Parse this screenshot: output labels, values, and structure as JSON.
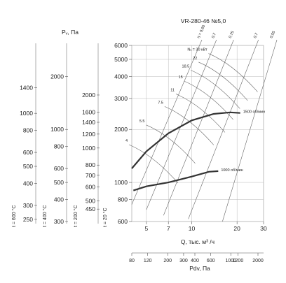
{
  "chart_data": {
    "type": "line",
    "title": "VR-280-46 №5,0",
    "xlabel": "Q, тыс. м³ /ч",
    "ylabel": "Pᵥ, Па",
    "x_scale": "log",
    "y_scale": "log",
    "xlim": [
      4,
      30
    ],
    "ylim": [
      600,
      6000
    ],
    "x_ticks": [
      5,
      7,
      10,
      20,
      30
    ],
    "y_ticks": [
      600,
      800,
      1000,
      2000,
      3000,
      4000,
      5000,
      6000
    ],
    "temperature_scales": [
      {
        "label": "t = 20 °C",
        "ticks": [
          "600",
          "800",
          "1000",
          "2000",
          "3000",
          "4000",
          "5000",
          "6000"
        ]
      },
      {
        "label": "t = 200 °C",
        "ticks": [
          "450",
          "500",
          "600",
          "700",
          "800",
          "1000",
          "1200",
          "1400",
          "1600",
          "2000"
        ]
      },
      {
        "label": "t = 400 °C",
        "ticks": [
          "300",
          "400",
          "500",
          "600",
          "800",
          "1000",
          "2000"
        ]
      },
      {
        "label": "t = 600 °C",
        "ticks": [
          "250",
          "300",
          "400",
          "500",
          "600",
          "800",
          "1000",
          "1400"
        ]
      }
    ],
    "dynamic_pressure_axis": {
      "label": "Pdv, Па",
      "ticks": [
        "80",
        "120",
        "200",
        "300",
        "400",
        "600",
        "1000",
        "1200",
        "2000"
      ]
    },
    "series": [
      {
        "name": "1500 об/мин",
        "x": [
          4.0,
          5.0,
          7.0,
          10.0,
          14.0,
          18.0,
          21.0
        ],
        "y": [
          1200,
          1500,
          1900,
          2250,
          2450,
          2500,
          2480
        ]
      },
      {
        "name": "1000 об/мин",
        "x": [
          4.1,
          5.0,
          7.0,
          10.0,
          13.0,
          15.0
        ],
        "y": [
          900,
          950,
          1000,
          1080,
          1150,
          1160
        ]
      }
    ],
    "power_labels": [
      "4",
      "5.5",
      "7.5",
      "11",
      "15",
      "18.5",
      "22",
      "Nᵥ = 30 кВт"
    ],
    "efficiency_labels": [
      "η = 0,66",
      "0,7",
      "0,75",
      "0,7",
      "0,55"
    ]
  }
}
